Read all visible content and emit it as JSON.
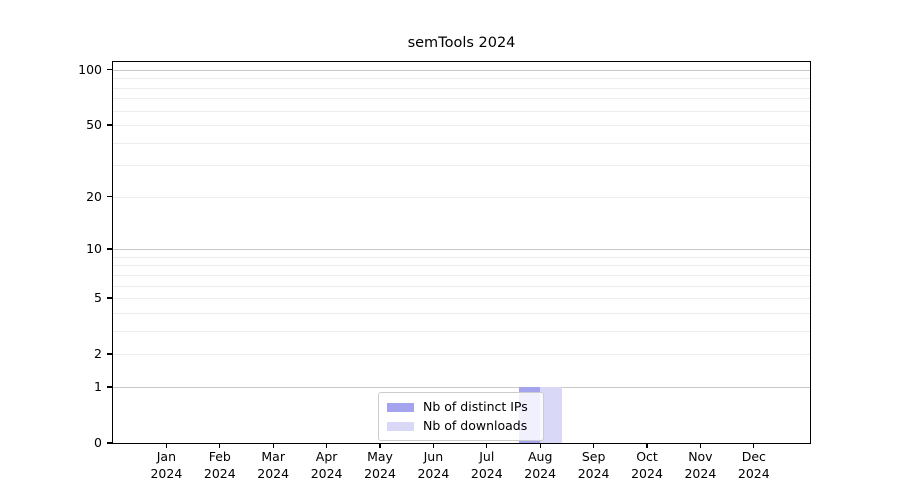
{
  "chart_data": {
    "type": "bar",
    "title": "semTools 2024",
    "categories": [
      "Jan",
      "Feb",
      "Mar",
      "Apr",
      "May",
      "Jun",
      "Jul",
      "Aug",
      "Sep",
      "Oct",
      "Nov",
      "Dec"
    ],
    "x_tick_second_line": "2024",
    "series": [
      {
        "name": "Nb of distinct IPs",
        "color": "#a4a4ee",
        "values": [
          0,
          0,
          0,
          0,
          0,
          0,
          0,
          1,
          0,
          0,
          0,
          0
        ]
      },
      {
        "name": "Nb of downloads",
        "color": "#d9d9f7",
        "values": [
          0,
          0,
          0,
          0,
          0,
          0,
          0,
          1,
          0,
          0,
          0,
          0
        ]
      }
    ],
    "y_scale": "log1p",
    "y_ticks": [
      "100",
      "50",
      "20",
      "10",
      "5",
      "2",
      "1",
      "0"
    ],
    "y_tick_values": [
      100,
      50,
      20,
      10,
      5,
      2,
      1,
      0
    ],
    "ylim": [
      0,
      110
    ],
    "grid": {
      "minor_values": [
        2,
        3,
        4,
        5,
        6,
        7,
        8,
        9,
        20,
        30,
        40,
        50,
        60,
        70,
        80,
        90
      ],
      "major_values": [
        1,
        10,
        100
      ],
      "minor_color": "#ececec",
      "major_color": "#c8c8c8"
    },
    "legend_position": "lower center",
    "axis_color": "#000000",
    "background_color": "#ffffff"
  }
}
